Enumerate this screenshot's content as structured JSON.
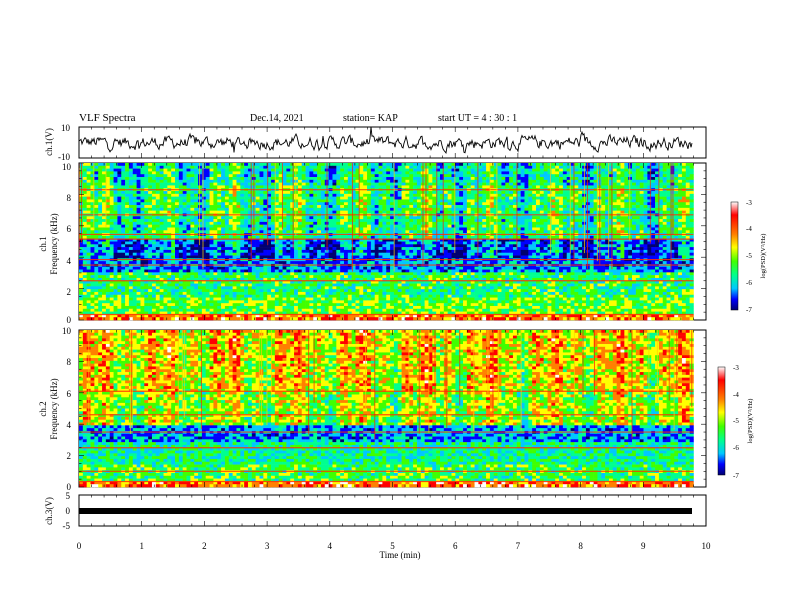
{
  "header": {
    "title": "VLF Spectra",
    "date": "Dec.14, 2021",
    "station": "station= KAP",
    "start_ut": "start  UT =   4 : 30 : 1"
  },
  "chart_data": [
    {
      "panel": "ch1-waveform",
      "type": "line",
      "ylabel": "ch.1(V)",
      "ylim": [
        -10,
        10
      ],
      "yticks": [
        "10",
        "-10"
      ],
      "xlim": [
        0,
        10
      ],
      "description_values": {
        "baseline_v": 0,
        "noise_amplitude_v": 4
      }
    },
    {
      "panel": "ch1-spectrogram",
      "type": "heatmap",
      "ylabel_lines": [
        "ch.1",
        "Frequency  (kHz)"
      ],
      "ylim": [
        0,
        10
      ],
      "yticks": [
        "0",
        "2",
        "4",
        "6",
        "8",
        "10"
      ],
      "xlim": [
        0,
        9.8
      ],
      "colorbar": {
        "label": "log(PSD)(V²/Hz)",
        "range": [
          -7,
          -3
        ],
        "ticks": [
          "-3",
          "-4",
          "-5",
          "-6",
          "-7"
        ]
      },
      "bands_khz": [
        {
          "from": 0.0,
          "to": 0.3,
          "level": -3.8
        },
        {
          "from": 0.3,
          "to": 1.5,
          "level": -5.0
        },
        {
          "from": 1.5,
          "to": 3.0,
          "level": -5.3
        },
        {
          "from": 3.0,
          "to": 3.9,
          "level": -6.2
        },
        {
          "from": 3.9,
          "to": 5.1,
          "level": -6.3
        },
        {
          "from": 5.1,
          "to": 6.6,
          "level": -5.4
        },
        {
          "from": 6.6,
          "to": 8.5,
          "level": -5.3
        },
        {
          "from": 8.5,
          "to": 10.0,
          "level": -5.6
        }
      ],
      "lines_khz": [
        0.35,
        2.5,
        3.5,
        3.85,
        5.15,
        5.45,
        6.7,
        8.3
      ]
    },
    {
      "panel": "ch2-spectrogram",
      "type": "heatmap",
      "ylabel_lines": [
        "ch.2",
        "Frequency  (kHz)"
      ],
      "ylim": [
        0,
        10
      ],
      "yticks": [
        "0",
        "2",
        "4",
        "6",
        "8",
        "10"
      ],
      "xlim": [
        0,
        9.8
      ],
      "colorbar": {
        "label": "log(PSD)(V²/Hz)",
        "range": [
          -7,
          -3
        ],
        "ticks": [
          "-3",
          "-4",
          "-5",
          "-6",
          "-7"
        ]
      },
      "bands_khz": [
        {
          "from": 0.0,
          "to": 0.3,
          "level": -3.8
        },
        {
          "from": 0.3,
          "to": 1.5,
          "level": -5.2
        },
        {
          "from": 1.5,
          "to": 2.8,
          "level": -5.5
        },
        {
          "from": 2.8,
          "to": 3.9,
          "level": -6.1
        },
        {
          "from": 3.9,
          "to": 6.0,
          "level": -4.8
        },
        {
          "from": 6.0,
          "to": 8.0,
          "level": -4.5
        },
        {
          "from": 8.0,
          "to": 10.0,
          "level": -4.4
        }
      ],
      "lines_khz": [
        0.35,
        1.0,
        2.5,
        3.5,
        4.6,
        6.1
      ]
    },
    {
      "panel": "ch3-waveform",
      "type": "line",
      "ylabel": "ch.3(V)",
      "ylim": [
        -5,
        5
      ],
      "yticks": [
        "5",
        "0",
        "-5"
      ],
      "xlim": [
        0,
        10
      ],
      "xlabel": "Time  (min)",
      "xticks": [
        "0",
        "1",
        "2",
        "3",
        "4",
        "5",
        "6",
        "7",
        "8",
        "9",
        "10"
      ],
      "description_values": {
        "constant_v": -0.5
      }
    }
  ],
  "colors": {
    "axis": "#000000",
    "scale": [
      "#000070",
      "#0000ff",
      "#00c8ff",
      "#00ff90",
      "#40ff00",
      "#ffff00",
      "#ff8000",
      "#ff0000",
      "#ffffff"
    ]
  }
}
